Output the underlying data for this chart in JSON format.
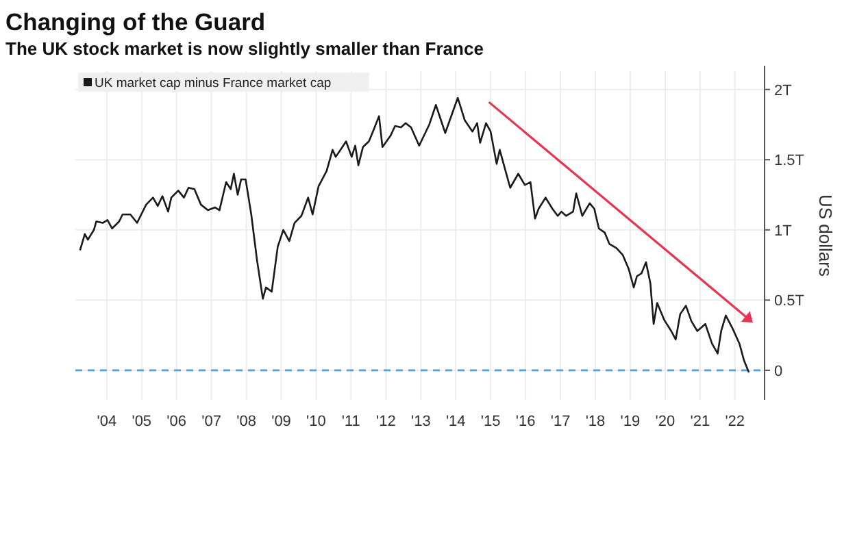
{
  "chart_data": {
    "type": "line",
    "title": "Changing of the Guard",
    "subtitle": "The UK stock market is now slightly smaller than France",
    "ylabel": "US dollars",
    "x": [
      "2003-09-27",
      "2003-11-14",
      "2003-12-16",
      "2004-02-17",
      "2004-03-13",
      "2004-05-21",
      "2004-07-08",
      "2004-08-25",
      "2004-11-07",
      "2004-12-13",
      "2005-03-05",
      "2005-05-14",
      "2005-08-17",
      "2005-10-28",
      "2005-12-16",
      "2006-02-03",
      "2006-04-04",
      "2006-05-07",
      "2006-07-19",
      "2006-09-16",
      "2006-11-03",
      "2007-01-04",
      "2007-03-13",
      "2007-05-25",
      "2007-08-07",
      "2007-09-23",
      "2007-12-02",
      "2008-01-19",
      "2008-02-21",
      "2008-04-01",
      "2008-05-07",
      "2008-06-23",
      "2008-08-21",
      "2008-10-19",
      "2008-12-20",
      "2009-01-22",
      "2009-03-23",
      "2009-05-25",
      "2009-07-22",
      "2009-09-23",
      "2009-11-17",
      "2010-01-28",
      "2010-04-08",
      "2010-05-25",
      "2010-07-26",
      "2010-10-19",
      "2010-12-20",
      "2011-01-22",
      "2011-03-23",
      "2011-05-10",
      "2011-07-08",
      "2011-08-14",
      "2011-09-16",
      "2011-11-03",
      "2012-01-04",
      "2012-02-21",
      "2012-04-19",
      "2012-05-25",
      "2012-08-17",
      "2012-10-04",
      "2012-12-05",
      "2013-01-22",
      "2013-03-20",
      "2013-06-13",
      "2013-09-27",
      "2013-12-05",
      "2014-03-13",
      "2014-07-22",
      "2014-10-04",
      "2014-12-23",
      "2015-02-10",
      "2015-03-13",
      "2015-05-14",
      "2015-07-01",
      "2015-09-02",
      "2015-10-04",
      "2016-01-22",
      "2016-04-15",
      "2016-06-23",
      "2016-08-21",
      "2016-10-08",
      "2016-11-14",
      "2017-01-26",
      "2017-04-08",
      "2017-06-02",
      "2017-07-11",
      "2017-08-28",
      "2017-11-10",
      "2017-12-13",
      "2018-02-14",
      "2018-05-03",
      "2018-06-20",
      "2018-08-07",
      "2018-10-08",
      "2018-11-25",
      "2019-02-07",
      "2019-04-15",
      "2019-06-16",
      "2019-08-07",
      "2019-09-09",
      "2019-10-26",
      "2019-12-13",
      "2020-01-28",
      "2020-03-02",
      "2020-04-08",
      "2020-06-20",
      "2020-09-02",
      "2020-10-19",
      "2020-12-05",
      "2021-02-03",
      "2021-04-01",
      "2021-06-02",
      "2021-08-25",
      "2021-11-03",
      "2022-01-01",
      "2022-02-07",
      "2022-03-27",
      "2022-06-05",
      "2022-08-17",
      "2022-10-04",
      "2022-11-21"
    ],
    "series": [
      {
        "name": "UK market cap minus France market cap",
        "color": "#1a1a1a",
        "values": [
          0.86,
          0.97,
          0.93,
          1.0,
          1.06,
          1.05,
          1.07,
          1.01,
          1.06,
          1.11,
          1.11,
          1.05,
          1.18,
          1.23,
          1.17,
          1.24,
          1.13,
          1.23,
          1.28,
          1.23,
          1.3,
          1.29,
          1.18,
          1.14,
          1.16,
          1.14,
          1.34,
          1.29,
          1.4,
          1.25,
          1.36,
          1.36,
          1.11,
          0.79,
          0.51,
          0.59,
          0.56,
          0.88,
          1.0,
          0.92,
          1.05,
          1.1,
          1.23,
          1.11,
          1.31,
          1.42,
          1.57,
          1.52,
          1.58,
          1.63,
          1.52,
          1.6,
          1.46,
          1.59,
          1.63,
          1.71,
          1.81,
          1.59,
          1.67,
          1.74,
          1.73,
          1.76,
          1.73,
          1.6,
          1.75,
          1.89,
          1.69,
          1.94,
          1.78,
          1.7,
          1.76,
          1.62,
          1.76,
          1.7,
          1.47,
          1.57,
          1.3,
          1.4,
          1.32,
          1.34,
          1.08,
          1.15,
          1.23,
          1.15,
          1.1,
          1.13,
          1.1,
          1.13,
          1.26,
          1.1,
          1.19,
          1.15,
          1.01,
          0.98,
          0.9,
          0.87,
          0.82,
          0.72,
          0.59,
          0.67,
          0.69,
          0.77,
          0.62,
          0.33,
          0.48,
          0.36,
          0.28,
          0.22,
          0.4,
          0.46,
          0.35,
          0.28,
          0.33,
          0.19,
          0.12,
          0.28,
          0.39,
          0.3,
          0.19,
          0.07,
          -0.01
        ]
      }
    ],
    "xlim": [
      "2003-08-07",
      "2023-05-07"
    ],
    "xticks": [
      {
        "value": "2004-07-01",
        "label": "'04"
      },
      {
        "value": "2005-07-01",
        "label": "'05"
      },
      {
        "value": "2006-07-01",
        "label": "'06"
      },
      {
        "value": "2007-07-01",
        "label": "'07"
      },
      {
        "value": "2008-07-01",
        "label": "'08"
      },
      {
        "value": "2009-07-01",
        "label": "'09"
      },
      {
        "value": "2010-07-01",
        "label": "'10"
      },
      {
        "value": "2011-07-01",
        "label": "'11"
      },
      {
        "value": "2012-07-01",
        "label": "'12"
      },
      {
        "value": "2013-07-01",
        "label": "'13"
      },
      {
        "value": "2014-07-01",
        "label": "'14"
      },
      {
        "value": "2015-07-01",
        "label": "'15"
      },
      {
        "value": "2016-07-01",
        "label": "'16"
      },
      {
        "value": "2017-07-01",
        "label": "'17"
      },
      {
        "value": "2018-07-01",
        "label": "'18"
      },
      {
        "value": "2019-07-01",
        "label": "'19"
      },
      {
        "value": "2020-07-01",
        "label": "'20"
      },
      {
        "value": "2021-07-01",
        "label": "'21"
      },
      {
        "value": "2022-07-01",
        "label": "'22"
      }
    ],
    "ylim": [
      -0.21,
      2.13
    ],
    "yticks": [
      0,
      {
        "value": 0.5,
        "label": "0.5T"
      },
      {
        "value": 1,
        "label": "1T"
      },
      {
        "value": 1.5,
        "label": "1.5T"
      },
      {
        "value": 2,
        "label": "2T"
      }
    ],
    "ref_lines": [
      {
        "axis": "y",
        "value": 0,
        "color": "#4a9fe8",
        "line_style": "dashed"
      }
    ],
    "grid": true,
    "legend": "top left",
    "marker": "none",
    "line_style": "solid"
  }
}
